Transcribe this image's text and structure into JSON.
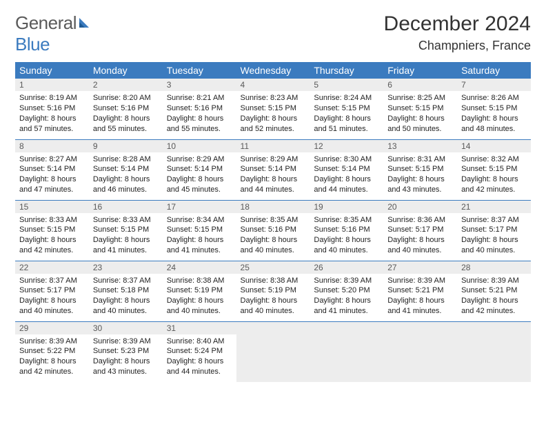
{
  "brand": {
    "word1": "General",
    "word2": "Blue"
  },
  "title": "December 2024",
  "location": "Champniers, France",
  "colors": {
    "header_bg": "#3b7bbf",
    "header_fg": "#ffffff",
    "daynum_bg": "#ededed",
    "daynum_fg": "#595959",
    "row_border": "#3b7bbf",
    "page_bg": "#ffffff",
    "body_text": "#222222",
    "logo_gray": "#5a5a5a",
    "logo_blue": "#3b7bbf"
  },
  "day_headers": [
    "Sunday",
    "Monday",
    "Tuesday",
    "Wednesday",
    "Thursday",
    "Friday",
    "Saturday"
  ],
  "weeks": [
    [
      {
        "n": "1",
        "sr": "Sunrise: 8:19 AM",
        "ss": "Sunset: 5:16 PM",
        "dl": "Daylight: 8 hours and 57 minutes."
      },
      {
        "n": "2",
        "sr": "Sunrise: 8:20 AM",
        "ss": "Sunset: 5:16 PM",
        "dl": "Daylight: 8 hours and 55 minutes."
      },
      {
        "n": "3",
        "sr": "Sunrise: 8:21 AM",
        "ss": "Sunset: 5:16 PM",
        "dl": "Daylight: 8 hours and 55 minutes."
      },
      {
        "n": "4",
        "sr": "Sunrise: 8:23 AM",
        "ss": "Sunset: 5:15 PM",
        "dl": "Daylight: 8 hours and 52 minutes."
      },
      {
        "n": "5",
        "sr": "Sunrise: 8:24 AM",
        "ss": "Sunset: 5:15 PM",
        "dl": "Daylight: 8 hours and 51 minutes."
      },
      {
        "n": "6",
        "sr": "Sunrise: 8:25 AM",
        "ss": "Sunset: 5:15 PM",
        "dl": "Daylight: 8 hours and 50 minutes."
      },
      {
        "n": "7",
        "sr": "Sunrise: 8:26 AM",
        "ss": "Sunset: 5:15 PM",
        "dl": "Daylight: 8 hours and 48 minutes."
      }
    ],
    [
      {
        "n": "8",
        "sr": "Sunrise: 8:27 AM",
        "ss": "Sunset: 5:14 PM",
        "dl": "Daylight: 8 hours and 47 minutes."
      },
      {
        "n": "9",
        "sr": "Sunrise: 8:28 AM",
        "ss": "Sunset: 5:14 PM",
        "dl": "Daylight: 8 hours and 46 minutes."
      },
      {
        "n": "10",
        "sr": "Sunrise: 8:29 AM",
        "ss": "Sunset: 5:14 PM",
        "dl": "Daylight: 8 hours and 45 minutes."
      },
      {
        "n": "11",
        "sr": "Sunrise: 8:29 AM",
        "ss": "Sunset: 5:14 PM",
        "dl": "Daylight: 8 hours and 44 minutes."
      },
      {
        "n": "12",
        "sr": "Sunrise: 8:30 AM",
        "ss": "Sunset: 5:14 PM",
        "dl": "Daylight: 8 hours and 44 minutes."
      },
      {
        "n": "13",
        "sr": "Sunrise: 8:31 AM",
        "ss": "Sunset: 5:15 PM",
        "dl": "Daylight: 8 hours and 43 minutes."
      },
      {
        "n": "14",
        "sr": "Sunrise: 8:32 AM",
        "ss": "Sunset: 5:15 PM",
        "dl": "Daylight: 8 hours and 42 minutes."
      }
    ],
    [
      {
        "n": "15",
        "sr": "Sunrise: 8:33 AM",
        "ss": "Sunset: 5:15 PM",
        "dl": "Daylight: 8 hours and 42 minutes."
      },
      {
        "n": "16",
        "sr": "Sunrise: 8:33 AM",
        "ss": "Sunset: 5:15 PM",
        "dl": "Daylight: 8 hours and 41 minutes."
      },
      {
        "n": "17",
        "sr": "Sunrise: 8:34 AM",
        "ss": "Sunset: 5:15 PM",
        "dl": "Daylight: 8 hours and 41 minutes."
      },
      {
        "n": "18",
        "sr": "Sunrise: 8:35 AM",
        "ss": "Sunset: 5:16 PM",
        "dl": "Daylight: 8 hours and 40 minutes."
      },
      {
        "n": "19",
        "sr": "Sunrise: 8:35 AM",
        "ss": "Sunset: 5:16 PM",
        "dl": "Daylight: 8 hours and 40 minutes."
      },
      {
        "n": "20",
        "sr": "Sunrise: 8:36 AM",
        "ss": "Sunset: 5:17 PM",
        "dl": "Daylight: 8 hours and 40 minutes."
      },
      {
        "n": "21",
        "sr": "Sunrise: 8:37 AM",
        "ss": "Sunset: 5:17 PM",
        "dl": "Daylight: 8 hours and 40 minutes."
      }
    ],
    [
      {
        "n": "22",
        "sr": "Sunrise: 8:37 AM",
        "ss": "Sunset: 5:17 PM",
        "dl": "Daylight: 8 hours and 40 minutes."
      },
      {
        "n": "23",
        "sr": "Sunrise: 8:37 AM",
        "ss": "Sunset: 5:18 PM",
        "dl": "Daylight: 8 hours and 40 minutes."
      },
      {
        "n": "24",
        "sr": "Sunrise: 8:38 AM",
        "ss": "Sunset: 5:19 PM",
        "dl": "Daylight: 8 hours and 40 minutes."
      },
      {
        "n": "25",
        "sr": "Sunrise: 8:38 AM",
        "ss": "Sunset: 5:19 PM",
        "dl": "Daylight: 8 hours and 40 minutes."
      },
      {
        "n": "26",
        "sr": "Sunrise: 8:39 AM",
        "ss": "Sunset: 5:20 PM",
        "dl": "Daylight: 8 hours and 41 minutes."
      },
      {
        "n": "27",
        "sr": "Sunrise: 8:39 AM",
        "ss": "Sunset: 5:21 PM",
        "dl": "Daylight: 8 hours and 41 minutes."
      },
      {
        "n": "28",
        "sr": "Sunrise: 8:39 AM",
        "ss": "Sunset: 5:21 PM",
        "dl": "Daylight: 8 hours and 42 minutes."
      }
    ],
    [
      {
        "n": "29",
        "sr": "Sunrise: 8:39 AM",
        "ss": "Sunset: 5:22 PM",
        "dl": "Daylight: 8 hours and 42 minutes."
      },
      {
        "n": "30",
        "sr": "Sunrise: 8:39 AM",
        "ss": "Sunset: 5:23 PM",
        "dl": "Daylight: 8 hours and 43 minutes."
      },
      {
        "n": "31",
        "sr": "Sunrise: 8:40 AM",
        "ss": "Sunset: 5:24 PM",
        "dl": "Daylight: 8 hours and 44 minutes."
      },
      null,
      null,
      null,
      null
    ]
  ]
}
